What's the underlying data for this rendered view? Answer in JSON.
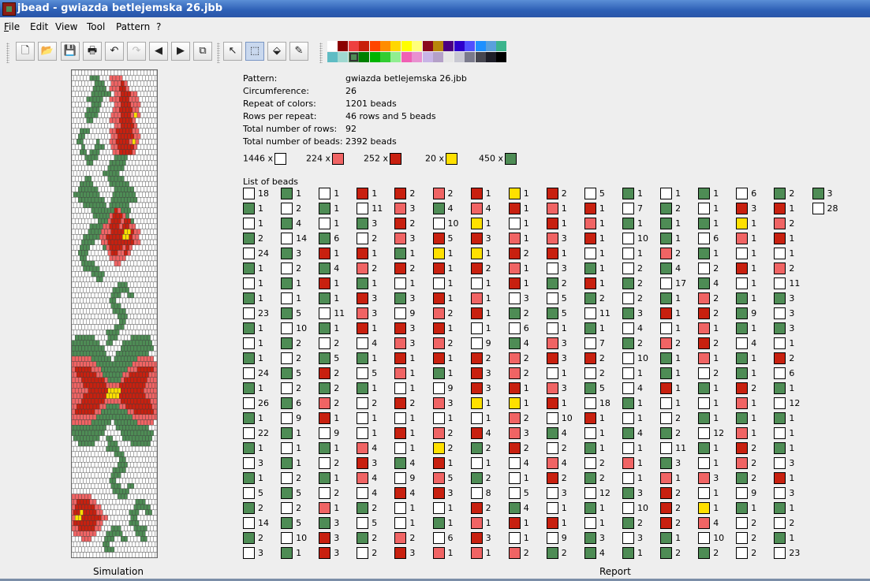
{
  "window": {
    "title": "jbead - gwiazda betlejemska 26.jbb"
  },
  "menu": [
    {
      "label": "File",
      "key": "F"
    },
    {
      "label": "Edit",
      "key": "E"
    },
    {
      "label": "View",
      "key": "V"
    },
    {
      "label": "Tool",
      "key": "T"
    },
    {
      "label": "Pattern",
      "key": "P"
    },
    {
      "label": "?",
      "key": "?"
    }
  ],
  "toolbar": {
    "buttons": [
      {
        "name": "new-file",
        "glyph": "🗋"
      },
      {
        "name": "open-file",
        "glyph": "📂"
      },
      {
        "name": "save-file",
        "glyph": "💾"
      },
      {
        "name": "print",
        "glyph": "🖶"
      },
      {
        "name": "undo",
        "glyph": "↶"
      },
      {
        "name": "redo",
        "glyph": "↷"
      },
      {
        "name": "arrow-left",
        "glyph": "◀"
      },
      {
        "name": "arrow-right",
        "glyph": "▶"
      },
      {
        "name": "copy",
        "glyph": "⧉"
      },
      {
        "name": "pointer-tool",
        "glyph": "↖"
      },
      {
        "name": "select-tool",
        "glyph": "⬚"
      },
      {
        "name": "fill-tool",
        "glyph": "⬙"
      },
      {
        "name": "pipette-tool",
        "glyph": "✎"
      }
    ],
    "selected_tool": "select-tool"
  },
  "palette": {
    "row1": [
      "#ffffff",
      "#8b0000",
      "#ee4040",
      "#c81e0a",
      "#ff4500",
      "#ff8c00",
      "#ffd700",
      "#ffff00",
      "#ffff7a",
      "#8b0a1e",
      "#b8860b",
      "#4b0082",
      "#2e00cc",
      "#5050ff",
      "#1e90ff",
      "#5aa0dc",
      "#3cb48c"
    ],
    "row2": [
      "#5fbcc4",
      "#9fd8d0",
      "#4e8c55",
      "#008000",
      "#00b400",
      "#32cd32",
      "#90ee90",
      "#f060b4",
      "#e890d0",
      "#c8b4e6",
      "#b4a0c8",
      "#e6e6e6",
      "#c8c8d2",
      "#7a7a8c",
      "#464650",
      "#1e1e28",
      "#000000"
    ],
    "selected": [
      1,
      2
    ]
  },
  "report": {
    "info": [
      {
        "key": "Pattern:",
        "value": "gwiazda betlejemska 26.jbb"
      },
      {
        "key": "Circumference:",
        "value": "26"
      },
      {
        "key": "Repeat of colors:",
        "value": "1201 beads"
      },
      {
        "key": "Rows per repeat:",
        "value": "46 rows and 5 beads"
      },
      {
        "key": "Total number of rows:",
        "value": "92"
      },
      {
        "key": "Total number of beads:",
        "value": "2392 beads"
      }
    ],
    "color_counts": [
      {
        "label": "1446 x",
        "color": "w"
      },
      {
        "label": "224 x",
        "color": "p"
      },
      {
        "label": "252 x",
        "color": "r"
      },
      {
        "label": "20 x",
        "color": "y"
      },
      {
        "label": "450 x",
        "color": "g"
      }
    ],
    "list_label": "List of beads",
    "colors": {
      "w": "#ffffff",
      "g": "#4e8c55",
      "r": "#c8200f",
      "p": "#f06464",
      "y": "#ffe000"
    },
    "beads_list": [
      [
        "w18",
        "g1",
        "w1",
        "r1",
        "r2",
        "p2",
        "r1",
        "y1",
        "r2",
        "w5",
        "g1",
        "w1",
        "g1",
        "w6",
        "g2",
        "g3"
      ],
      [
        "g1",
        "w2",
        "g1",
        "w11",
        "p3",
        "g4",
        "p4",
        "r1",
        "p1",
        "r1",
        "w7",
        "g2",
        "w1",
        "r3",
        "r1",
        "w28"
      ],
      [
        "w1",
        "g4",
        "w1",
        "g3",
        "r2",
        "w10",
        "y1",
        "w1",
        "r1",
        "p1",
        "g1",
        "g1",
        "g1",
        "y1",
        "p2"
      ],
      [
        "g2",
        "w14",
        "g6",
        "w2",
        "p3",
        "r5",
        "r3",
        "p1",
        "p3",
        "r1",
        "w10",
        "g1",
        "w6",
        "p1",
        "r1"
      ],
      [
        "w24",
        "g3",
        "r1",
        "r1",
        "g1",
        "y1",
        "y1",
        "r2",
        "r1",
        "w1",
        "w1",
        "p2",
        "g1",
        "w1",
        "w1"
      ],
      [
        "g1",
        "w2",
        "g4",
        "p2",
        "r2",
        "r1",
        "r2",
        "p1",
        "w3",
        "g1",
        "w2",
        "g4",
        "w2",
        "r1",
        "p2"
      ],
      [
        "w1",
        "g1",
        "r1",
        "g1",
        "w1",
        "w1",
        "w1",
        "r1",
        "g2",
        "r1",
        "g2",
        "w17",
        "g4",
        "w1",
        "w11"
      ],
      [
        "g1",
        "w1",
        "g1",
        "r3",
        "g3",
        "r1",
        "p1",
        "w3",
        "w5",
        "g2",
        "w2",
        "g1",
        "p2",
        "g1",
        "g3"
      ],
      [
        "w23",
        "g5",
        "w11",
        "p3",
        "w9",
        "p2",
        "r1",
        "g2",
        "g5",
        "w11",
        "g3",
        "r1",
        "r2",
        "g9",
        "w3"
      ],
      [
        "g1",
        "w10",
        "g1",
        "r1",
        "r3",
        "r1",
        "w1",
        "w6",
        "w1",
        "g1",
        "w4",
        "w1",
        "p1",
        "g1",
        "g3"
      ],
      [
        "w1",
        "g2",
        "w2",
        "w4",
        "p3",
        "p2",
        "w9",
        "g4",
        "p3",
        "w7",
        "g2",
        "p2",
        "r2",
        "w4",
        "w1"
      ],
      [
        "g1",
        "w2",
        "g5",
        "g1",
        "r1",
        "r1",
        "r2",
        "p2",
        "r3",
        "r2",
        "w10",
        "g1",
        "p1",
        "g1",
        "r2"
      ],
      [
        "w24",
        "g5",
        "r2",
        "w5",
        "p1",
        "g1",
        "r3",
        "p2",
        "w1",
        "w2",
        "w1",
        "g1",
        "w2",
        "g1",
        "w6"
      ],
      [
        "g1",
        "w2",
        "g2",
        "g1",
        "w1",
        "w9",
        "r3",
        "r1",
        "p3",
        "g5",
        "w4",
        "r1",
        "g1",
        "r2",
        "g1"
      ],
      [
        "w26",
        "g6",
        "p2",
        "w2",
        "r2",
        "p3",
        "y1",
        "y1",
        "r1",
        "w18",
        "g1",
        "w1",
        "w1",
        "p1",
        "w12"
      ],
      [
        "g1",
        "w9",
        "r1",
        "w1",
        "w1",
        "w1",
        "w1",
        "p2",
        "w10",
        "r1",
        "w1",
        "w2",
        "g1",
        "g1",
        "g1"
      ],
      [
        "w22",
        "g1",
        "w9",
        "w1",
        "r1",
        "p2",
        "r4",
        "p3",
        "g4",
        "w1",
        "g4",
        "g2",
        "w12",
        "p1",
        "w1"
      ],
      [
        "g1",
        "w1",
        "g1",
        "p4",
        "w1",
        "y2",
        "g2",
        "r2",
        "w2",
        "g1",
        "w1",
        "w11",
        "g1",
        "r2",
        "g1"
      ],
      [
        "w3",
        "g1",
        "w2",
        "r3",
        "g4",
        "r1",
        "w1",
        "w4",
        "p4",
        "w2",
        "p1",
        "g3",
        "w1",
        "p2",
        "w3"
      ],
      [
        "g1",
        "w2",
        "g1",
        "p4",
        "w9",
        "p5",
        "g2",
        "w1",
        "r2",
        "g2",
        "w1",
        "p1",
        "p3",
        "g2",
        "r1"
      ],
      [
        "w5",
        "g5",
        "w2",
        "w4",
        "r4",
        "r3",
        "w8",
        "w5",
        "w3",
        "w12",
        "g3",
        "r2",
        "w1",
        "w9",
        "w3"
      ],
      [
        "g2",
        "w2",
        "p1",
        "g2",
        "w1",
        "w1",
        "r2",
        "g4",
        "w1",
        "g1",
        "w10",
        "r2",
        "y1",
        "g1",
        "g1"
      ],
      [
        "w14",
        "g5",
        "g3",
        "w5",
        "w1",
        "g1",
        "p1",
        "r1",
        "r1",
        "w1",
        "g2",
        "r2",
        "p4",
        "w2",
        "w2"
      ],
      [
        "g2",
        "w10",
        "r3",
        "g2",
        "p2",
        "w6",
        "r3",
        "w1",
        "w9",
        "g3",
        "w3",
        "g1",
        "w10",
        "w2",
        "g1"
      ],
      [
        "w3",
        "g1",
        "r3",
        "w2",
        "r3",
        "p1",
        "p1",
        "p2",
        "g2",
        "g4",
        "g1",
        "g2",
        "g2",
        "w2",
        "w23"
      ]
    ],
    "sim_palette": {
      "0": "#ffffff",
      "1": "#4e8c55",
      "2": "#c8200f",
      "3": "#f06464",
      "4": "#ffe000"
    },
    "sim_grid": [
      "00000000000000000000000000",
      "00000011100033330000000000",
      "00000001110033323000000000",
      "00000001111033322300000000",
      "00000011111103322233000000",
      "00000111110033322233300000",
      "00000011100003322233300000",
      "00000111100003322223300000",
      "00001111000033322234300000",
      "00000110000033322223000000",
      "00000000000003322223000000",
      "00011100000033222223300000",
      "00110000000033222223300000",
      "00110000100033222234300000",
      "00010001110033222223000000",
      "00011011100003322223000000",
      "00001111000001111000000000",
      "00000110000011111000000000",
      "00000000000111110000000000",
      "00000000001111100000000000",
      "00001100000111110000000000",
      "00011110000011111100000000",
      "00111111000001111110000000",
      "01111111100001111111000000",
      "00111111110011111111000000",
      "00001111111011111100000000",
      "00000011111112311100000000",
      "00000001111132223100000000",
      "00000000111322232210000000",
      "00000011113322232233000000",
      "00000111133322224423300000",
      "00001111133222224423300000",
      "00011110033222222223300000",
      "00011100001322223230000000",
      "00111000000322332300000000",
      "00011000000033333000000000",
      "00011110000003300000000000",
      "00001111100000000000000000",
      "00000011110000000000000000",
      "00000000110000000000000000",
      "00000000000000111000000000",
      "00000000000001111100000000",
      "00000000000011100110000000",
      "00000000000011000000000000",
      "00000000000011100000000000",
      "00000000000001111000000000",
      "00000000000000111000000000",
      "00000000000000011000000000",
      "00000000000001110000000000",
      "00000000000111100000000000",
      "01111110000111000011111100",
      "11111111100110001111111110",
      "11111111110000011111111110",
      "11111111111000111111111100",
      "33333311111101111111333330",
      "33333333111111111113333333",
      "32222233311111111333222223",
      "33222222331111113322222233",
      "33322222223111132222222333",
      "33332222222333322222222333",
      "33333222222444422222223333",
      "33332222222444422222222333",
      "33322222223333322222222233",
      "33222222233111133222222223",
      "32222223311111111332222223",
      "33333333111111111113333333",
      "33333311111101111111333330",
      "11111111111000111111111100",
      "11111111110000011111111110",
      "01111111100110001111111110",
      "00111110000111000011111100",
      "00000000000111100000000000",
      "00000000000001110000000000",
      "00000000000000011000000000",
      "00000000000000111000000000",
      "00000000000001111000000000",
      "00000000000011100000000000",
      "00000000000011000000000000",
      "00000000000011100110000000",
      "00000000000001111100000000",
      "33333300000000111000000000",
      "33222233000000000000111000",
      "32222223300000000001111100",
      "32242222330000000011100110",
      "34422222233000000011000000",
      "32222222330000000011100000",
      "33222223300011100001111000",
      "03333333000111110000111000",
      "00033300001110011000011000",
      "00000000001100000000000000",
      "00000000001110000000000000",
      "00000000000000000000000000"
    ],
    "sim_label": "Simulation",
    "report_label": "Report"
  }
}
